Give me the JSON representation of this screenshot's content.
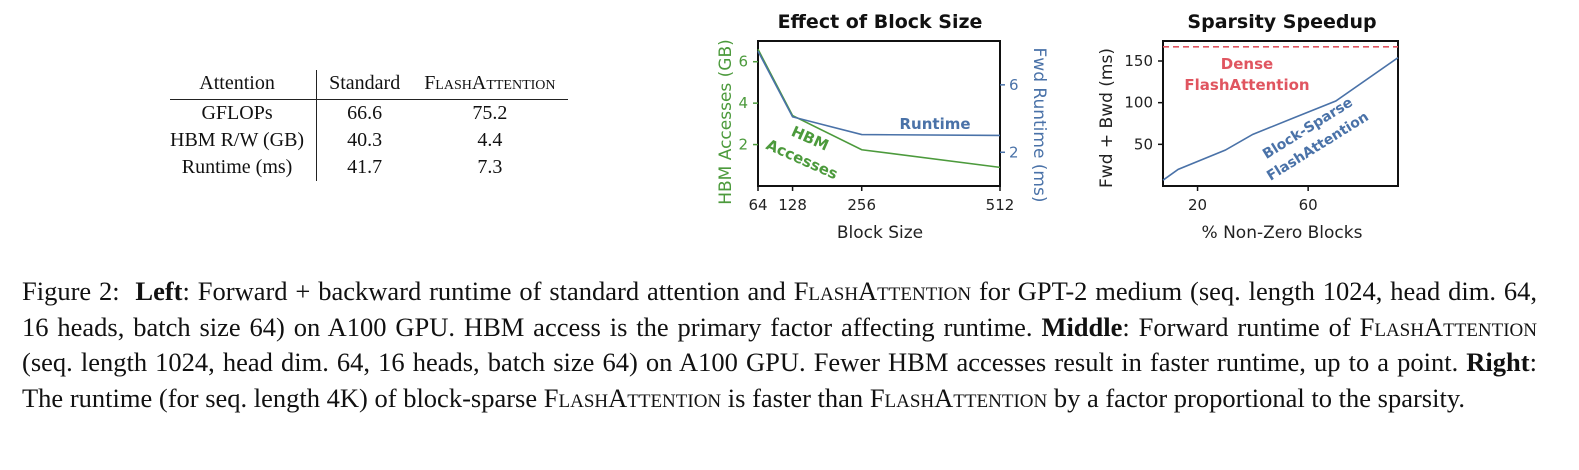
{
  "table": {
    "headers": [
      "Attention",
      "Standard",
      "FlashAttention"
    ],
    "rows": [
      [
        "GFLOPs",
        "66.6",
        "75.2"
      ],
      [
        "HBM R/W (GB)",
        "40.3",
        "4.4"
      ],
      [
        "Runtime (ms)",
        "41.7",
        "7.3"
      ]
    ]
  },
  "chart_data": [
    {
      "type": "line",
      "title": "Effect of Block Size",
      "xlabel": "Block Size",
      "ylabel": "HBM Accesses (GB)",
      "ylabel_right": "Fwd Runtime (ms)",
      "x": [
        64,
        128,
        256,
        512
      ],
      "xticks": [
        "64",
        "128",
        "256",
        "512"
      ],
      "xlim": [
        64,
        512
      ],
      "ylim": [
        0,
        7
      ],
      "yticks": [
        "2",
        "4",
        "6"
      ],
      "ylim_right": [
        0,
        8.6
      ],
      "yticks_right": [
        "2",
        "6"
      ],
      "series": [
        {
          "name": "HBM Accesses",
          "label_lines": [
            "HBM",
            "Accesses"
          ],
          "axis": "left",
          "color": "#4c9a3c",
          "values": [
            6.6,
            3.4,
            1.75,
            0.9
          ]
        },
        {
          "name": "Runtime",
          "axis": "right",
          "color": "#4a72a8",
          "values": [
            8.0,
            4.1,
            3.05,
            3.0
          ]
        }
      ]
    },
    {
      "type": "line",
      "title": "Sparsity Speedup",
      "xlabel": "% Non-Zero Blocks",
      "ylabel": "Fwd + Bwd (ms)",
      "xlim": [
        7.5,
        92.5
      ],
      "xticks": [
        "20",
        "60"
      ],
      "ylim": [
        0,
        174
      ],
      "yticks": [
        "50",
        "100",
        "150"
      ],
      "series": [
        {
          "name": "Dense FlashAttention",
          "label_lines": [
            "Dense",
            "FlashAttention"
          ],
          "color": "#e05560",
          "dashed": true,
          "x": [
            7.5,
            92.5
          ],
          "values": [
            167,
            167
          ]
        },
        {
          "name": "Block-Sparse FlashAttention",
          "label_lines": [
            "Block-Sparse",
            "FlashAttention"
          ],
          "color": "#4a72a8",
          "x": [
            7.5,
            13,
            30,
            40,
            55,
            70,
            92.5
          ],
          "values": [
            7,
            20,
            43,
            62,
            82,
            102,
            154
          ]
        }
      ]
    }
  ],
  "caption": {
    "figure_label": "Figure 2:",
    "left_head": "Left",
    "left_text": "Forward + backward runtime of standard attention and ",
    "flash": "FlashAttention",
    "left_text2": " for GPT-2 medium (seq. length 1024, head dim. 64, 16 heads, batch size 64) on A100 GPU. HBM access is the primary factor affecting runtime. ",
    "middle_head": "Middle",
    "middle_text": "Forward runtime of ",
    "middle_text2": " (seq. length 1024, head dim. 64, 16 heads, batch size 64) on A100 GPU. Fewer HBM accesses result in faster runtime, up to a point. ",
    "right_head": "Right",
    "right_text": "The runtime (for seq. length 4K) of block-sparse ",
    "right_text2": " is faster than ",
    "right_text3": " by a factor proportional to the sparsity."
  }
}
